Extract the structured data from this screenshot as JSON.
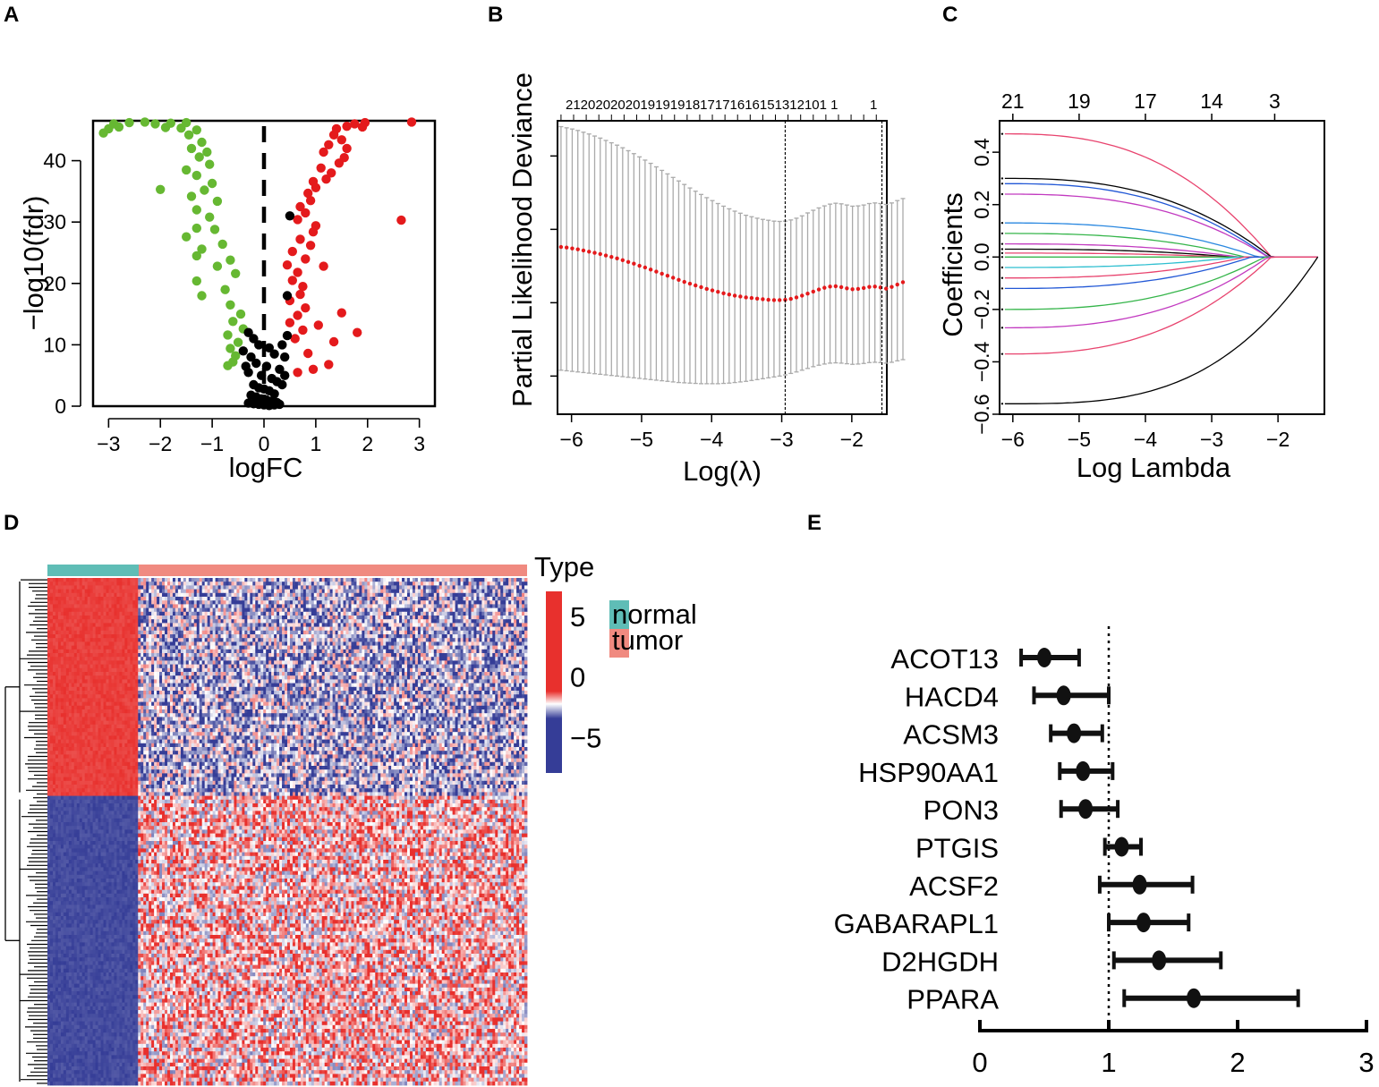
{
  "panels": {
    "A": "A",
    "B": "B",
    "C": "C",
    "D": "D",
    "E": "E"
  },
  "colors": {
    "up": "#e41a1c",
    "down": "#66b832",
    "ns": "#000000",
    "cv_point": "#e41a1c",
    "cv_bar": "#aaaaaa",
    "normal": "#5fbdb6",
    "tumor": "#f08a80",
    "heat_high": "#e8302d",
    "heat_mid": "#ffffff",
    "heat_low": "#353d97"
  },
  "chart_data": [
    {
      "id": "A",
      "type": "scatter",
      "title": "",
      "xlabel": "logFC",
      "ylabel": "−log10(fdr)",
      "xlim": [
        -3.3,
        3.3
      ],
      "ylim": [
        0,
        46.5
      ],
      "xticks": [
        -3,
        -2,
        -1,
        0,
        1,
        2,
        3
      ],
      "yticks": [
        0,
        10,
        20,
        30,
        40
      ],
      "xtick_labels": [
        "−3",
        "−2",
        "−1",
        "0",
        "1",
        "2",
        "3"
      ],
      "ytick_labels": [
        "0",
        "10",
        "20",
        "30",
        "40"
      ],
      "vline_x": 0,
      "series": [
        {
          "name": "down",
          "points": [
            [
              -3.1,
              44.5
            ],
            [
              -3.0,
              45.2
            ],
            [
              -2.9,
              46.0
            ],
            [
              -2.8,
              45.5
            ],
            [
              -2.6,
              46.2
            ],
            [
              -2.3,
              46.3
            ],
            [
              -2.1,
              46.0
            ],
            [
              -1.9,
              45.4
            ],
            [
              -1.8,
              46.1
            ],
            [
              -1.6,
              45.3
            ],
            [
              -1.5,
              46.2
            ],
            [
              -1.45,
              44.2
            ],
            [
              -1.3,
              45.0
            ],
            [
              -1.2,
              43.0
            ],
            [
              -1.4,
              42.0
            ],
            [
              -1.1,
              41.4
            ],
            [
              -1.25,
              40.6
            ],
            [
              -1.05,
              39.4
            ],
            [
              -1.5,
              38.5
            ],
            [
              -1.3,
              37.6
            ],
            [
              -1.0,
              36.3
            ],
            [
              -1.15,
              35.2
            ],
            [
              -2.0,
              35.3
            ],
            [
              -1.4,
              34.2
            ],
            [
              -0.9,
              33.4
            ],
            [
              -1.3,
              32.0
            ],
            [
              -1.05,
              30.8
            ],
            [
              -1.3,
              29.0
            ],
            [
              -0.95,
              28.8
            ],
            [
              -1.5,
              27.6
            ],
            [
              -0.8,
              26.4
            ],
            [
              -1.2,
              25.6
            ],
            [
              -1.3,
              24.5
            ],
            [
              -0.65,
              23.8
            ],
            [
              -0.9,
              22.8
            ],
            [
              -0.55,
              21.6
            ],
            [
              -1.3,
              20.4
            ],
            [
              -0.75,
              19.0
            ],
            [
              -1.2,
              18.0
            ],
            [
              -0.65,
              16.5
            ],
            [
              -0.45,
              15.0
            ],
            [
              -0.6,
              13.8
            ],
            [
              -0.4,
              12.6
            ],
            [
              -0.7,
              11.6
            ],
            [
              -0.5,
              10.4
            ],
            [
              -0.65,
              9.4
            ],
            [
              -0.55,
              8.2
            ],
            [
              -0.6,
              7.2
            ],
            [
              -0.7,
              6.6
            ]
          ]
        },
        {
          "name": "up",
          "points": [
            [
              2.85,
              46.3
            ],
            [
              1.95,
              46.2
            ],
            [
              1.75,
              46.0
            ],
            [
              1.9,
              45.5
            ],
            [
              1.6,
              45.6
            ],
            [
              1.4,
              45.2
            ],
            [
              1.35,
              44.2
            ],
            [
              1.5,
              43.4
            ],
            [
              1.25,
              42.6
            ],
            [
              1.6,
              42.0
            ],
            [
              1.15,
              41.4
            ],
            [
              1.55,
              40.5
            ],
            [
              1.45,
              39.6
            ],
            [
              1.1,
              38.8
            ],
            [
              1.3,
              38.0
            ],
            [
              1.2,
              37.0
            ],
            [
              0.95,
              36.6
            ],
            [
              1.0,
              35.6
            ],
            [
              0.85,
              34.7
            ],
            [
              0.9,
              33.5
            ],
            [
              0.7,
              32.5
            ],
            [
              0.8,
              31.5
            ],
            [
              0.65,
              30.4
            ],
            [
              1.0,
              29.4
            ],
            [
              2.65,
              30.3
            ],
            [
              0.95,
              28.4
            ],
            [
              0.7,
              27.2
            ],
            [
              0.9,
              26.2
            ],
            [
              0.55,
              25.2
            ],
            [
              0.8,
              24.0
            ],
            [
              0.45,
              23.0
            ],
            [
              1.15,
              22.8
            ],
            [
              0.65,
              21.8
            ],
            [
              0.55,
              20.5
            ],
            [
              0.75,
              19.5
            ],
            [
              0.7,
              18.2
            ],
            [
              0.5,
              17.2
            ],
            [
              0.8,
              16.0
            ],
            [
              0.65,
              14.8
            ],
            [
              1.5,
              15.2
            ],
            [
              0.5,
              13.6
            ],
            [
              0.75,
              12.4
            ],
            [
              0.6,
              11.0
            ],
            [
              1.35,
              10.5
            ],
            [
              1.25,
              6.8
            ],
            [
              0.85,
              8.6
            ],
            [
              0.95,
              6.0
            ],
            [
              0.65,
              5.5
            ],
            [
              1.8,
              12.0
            ],
            [
              1.05,
              13.2
            ]
          ]
        },
        {
          "name": "ns",
          "points": [
            [
              0.5,
              31.0
            ],
            [
              0.45,
              18.0
            ],
            [
              -0.3,
              12.0
            ],
            [
              -0.2,
              11.0
            ],
            [
              -0.1,
              10.0
            ],
            [
              0.1,
              9.5
            ],
            [
              0.2,
              8.5
            ],
            [
              -0.25,
              8.0
            ],
            [
              -0.15,
              7.0
            ],
            [
              0.05,
              6.5
            ],
            [
              0.3,
              6.0
            ],
            [
              -0.3,
              5.5
            ],
            [
              -0.05,
              5.0
            ],
            [
              0.15,
              4.5
            ],
            [
              0.25,
              4.0
            ],
            [
              -0.2,
              3.5
            ],
            [
              -0.1,
              3.0
            ],
            [
              0.0,
              2.8
            ],
            [
              0.1,
              2.5
            ],
            [
              0.2,
              2.0
            ],
            [
              -0.25,
              1.8
            ],
            [
              -0.15,
              1.5
            ],
            [
              -0.05,
              1.2
            ],
            [
              0.05,
              1.0
            ],
            [
              0.15,
              0.8
            ],
            [
              0.25,
              0.6
            ],
            [
              -0.3,
              0.5
            ],
            [
              -0.2,
              0.4
            ],
            [
              -0.1,
              0.3
            ],
            [
              0.0,
              0.2
            ],
            [
              0.1,
              0.1
            ],
            [
              0.2,
              0.2
            ],
            [
              0.3,
              0.3
            ],
            [
              0.4,
              8.0
            ],
            [
              0.35,
              10.0
            ],
            [
              0.45,
              11.5
            ],
            [
              0.4,
              5.0
            ],
            [
              0.35,
              3.5
            ],
            [
              -0.35,
              6.5
            ],
            [
              -0.4,
              9.0
            ]
          ]
        }
      ]
    },
    {
      "id": "B",
      "type": "line",
      "title": "",
      "xlabel": "Log(λ)",
      "ylabel": "Partial Likelihood Deviance",
      "xlim": [
        -6.2,
        -1.5
      ],
      "ylim": [
        0,
        1
      ],
      "xticks": [
        -6,
        -5,
        -4,
        -3,
        -2
      ],
      "xtick_labels": [
        "−6",
        "−5",
        "−4",
        "−3",
        "−2"
      ],
      "top_label_text": "21202020201919191817171616151312101 1",
      "top_label_1": "1",
      "vlines": [
        -2.95,
        -1.57
      ],
      "series": [
        {
          "name": "cv_mean",
          "x_start": -6.15,
          "x_step": 0.08,
          "values": [
            0.57,
            0.568,
            0.565,
            0.562,
            0.558,
            0.554,
            0.55,
            0.546,
            0.541,
            0.536,
            0.531,
            0.525,
            0.519,
            0.513,
            0.506,
            0.5,
            0.493,
            0.486,
            0.479,
            0.472,
            0.465,
            0.458,
            0.451,
            0.445,
            0.439,
            0.433,
            0.427,
            0.422,
            0.417,
            0.412,
            0.408,
            0.404,
            0.401,
            0.398,
            0.396,
            0.394,
            0.392,
            0.39,
            0.389,
            0.389,
            0.39,
            0.393,
            0.398,
            0.404,
            0.411,
            0.418,
            0.425,
            0.431,
            0.435,
            0.436,
            0.433,
            0.429,
            0.426,
            0.427,
            0.43,
            0.434,
            0.435,
            0.432,
            0.428,
            0.434,
            0.442,
            0.45
          ]
        },
        {
          "name": "cv_upper",
          "values": [
            0.98,
            0.976,
            0.972,
            0.967,
            0.961,
            0.955,
            0.948,
            0.941,
            0.933,
            0.925,
            0.917,
            0.908,
            0.898,
            0.888,
            0.877,
            0.866,
            0.855,
            0.843,
            0.831,
            0.819,
            0.807,
            0.795,
            0.783,
            0.771,
            0.76,
            0.749,
            0.738,
            0.728,
            0.718,
            0.709,
            0.7,
            0.692,
            0.685,
            0.678,
            0.673,
            0.668,
            0.664,
            0.661,
            0.658,
            0.657,
            0.658,
            0.662,
            0.668,
            0.676,
            0.686,
            0.695,
            0.703,
            0.71,
            0.716,
            0.719,
            0.717,
            0.713,
            0.709,
            0.71,
            0.713,
            0.718,
            0.72,
            0.718,
            0.715,
            0.72,
            0.728,
            0.735
          ]
        },
        {
          "name": "cv_lower",
          "values": [
            0.15,
            0.148,
            0.146,
            0.144,
            0.142,
            0.14,
            0.138,
            0.136,
            0.134,
            0.132,
            0.13,
            0.128,
            0.126,
            0.124,
            0.122,
            0.12,
            0.118,
            0.116,
            0.114,
            0.112,
            0.11,
            0.108,
            0.107,
            0.106,
            0.105,
            0.104,
            0.104,
            0.104,
            0.104,
            0.105,
            0.106,
            0.108,
            0.11,
            0.112,
            0.115,
            0.118,
            0.121,
            0.124,
            0.127,
            0.13,
            0.134,
            0.139,
            0.144,
            0.15,
            0.156,
            0.162,
            0.167,
            0.171,
            0.174,
            0.175,
            0.174,
            0.172,
            0.17,
            0.171,
            0.173,
            0.176,
            0.177,
            0.176,
            0.174,
            0.177,
            0.182,
            0.186
          ]
        }
      ]
    },
    {
      "id": "C",
      "type": "line",
      "title": "",
      "xlabel": "Log Lambda",
      "ylabel": "Coefficients",
      "xlim": [
        -6.2,
        -1.3
      ],
      "ylim": [
        -0.6,
        0.52
      ],
      "xticks": [
        -6,
        -5,
        -4,
        -3,
        -2
      ],
      "xtick_labels": [
        "−6",
        "−5",
        "−4",
        "−3",
        "−2"
      ],
      "yticks": [
        -0.6,
        -0.4,
        -0.2,
        0.0,
        0.2,
        0.4
      ],
      "ytick_labels": [
        "−0.6",
        "−0.4",
        "−0.2",
        "0.0",
        "0.2",
        "0.4"
      ],
      "top_ticks": [
        -6,
        -5,
        -4,
        -3,
        -2.05
      ],
      "top_labels": [
        "21",
        "19",
        "17",
        "14",
        "3"
      ],
      "series": [
        {
          "name": "c1",
          "color": "#e8436e",
          "start": 0.47,
          "zero_at": -2.1,
          "tail": 0
        },
        {
          "name": "c2",
          "color": "#000000",
          "start": 0.3,
          "zero_at": -2.1,
          "tail": 0
        },
        {
          "name": "c3",
          "color": "#2258d6",
          "start": 0.28,
          "zero_at": -2.15,
          "tail": 0
        },
        {
          "name": "c4",
          "color": "#c23ac0",
          "start": 0.24,
          "zero_at": -2.15,
          "tail": 0
        },
        {
          "name": "c5",
          "color": "#2a88e0",
          "start": 0.13,
          "zero_at": -2.3,
          "tail": 0
        },
        {
          "name": "c6",
          "color": "#35b54a",
          "start": 0.09,
          "zero_at": -2.5,
          "tail": 0
        },
        {
          "name": "c7",
          "color": "#c23ac0",
          "start": 0.05,
          "zero_at": -2.6,
          "tail": 0
        },
        {
          "name": "c8",
          "color": "#000000",
          "start": 0.03,
          "zero_at": -2.7,
          "tail": 0
        },
        {
          "name": "c9",
          "color": "#e8436e",
          "start": 0.015,
          "zero_at": -2.8,
          "tail": 0
        },
        {
          "name": "c10",
          "color": "#35b54a",
          "start": 0.0,
          "zero_at": -2.9,
          "tail": 0
        },
        {
          "name": "c11",
          "color": "#2fbfd0",
          "start": -0.04,
          "zero_at": -2.6,
          "tail": 0
        },
        {
          "name": "c12",
          "color": "#e8436e",
          "start": -0.08,
          "zero_at": -2.5,
          "tail": 0
        },
        {
          "name": "c13",
          "color": "#2258d6",
          "start": -0.12,
          "zero_at": -2.4,
          "tail": 0
        },
        {
          "name": "c14",
          "color": "#35b54a",
          "start": -0.2,
          "zero_at": -2.2,
          "tail": 0
        },
        {
          "name": "c15",
          "color": "#c23ac0",
          "start": -0.27,
          "zero_at": -2.15,
          "tail": 0
        },
        {
          "name": "c16",
          "color": "#e8436e",
          "start": -0.37,
          "zero_at": -2.1,
          "tail": 0
        },
        {
          "name": "c17",
          "color": "#000000",
          "start": -0.56,
          "zero_at": -1.4,
          "tail": 1
        }
      ]
    },
    {
      "id": "D",
      "type": "heatmap",
      "title": "",
      "legend_title": "Type",
      "legend_entries": [
        "normal",
        "tumor"
      ],
      "scale_ticks": [
        5,
        0,
        -5
      ],
      "scale_tick_labels": [
        "5",
        "0",
        "−5"
      ],
      "value_range": [
        -8,
        7
      ],
      "n_rows": 135,
      "n_cols": 180,
      "normal_fraction": 0.19,
      "upper_block_fraction": 0.43
    },
    {
      "id": "E",
      "type": "forest",
      "title": "",
      "xlim": [
        0,
        3
      ],
      "xticks": [
        0,
        1,
        2,
        3
      ],
      "xtick_labels": [
        "0",
        "1",
        "2",
        "3"
      ],
      "reference_line": 1,
      "genes": [
        "ACOT13",
        "HACD4",
        "ACSM3",
        "HSP90AA1",
        "PON3",
        "PTGIS",
        "ACSF2",
        "GABARAPL1",
        "D2HGDH",
        "PPARA"
      ],
      "hr": [
        0.5,
        0.65,
        0.73,
        0.8,
        0.82,
        1.1,
        1.24,
        1.27,
        1.39,
        1.66
      ],
      "lower": [
        0.32,
        0.42,
        0.55,
        0.62,
        0.63,
        0.97,
        0.93,
        1.0,
        1.04,
        1.12
      ],
      "upper": [
        0.77,
        1.0,
        0.95,
        1.03,
        1.07,
        1.25,
        1.65,
        1.62,
        1.87,
        2.47
      ]
    }
  ]
}
